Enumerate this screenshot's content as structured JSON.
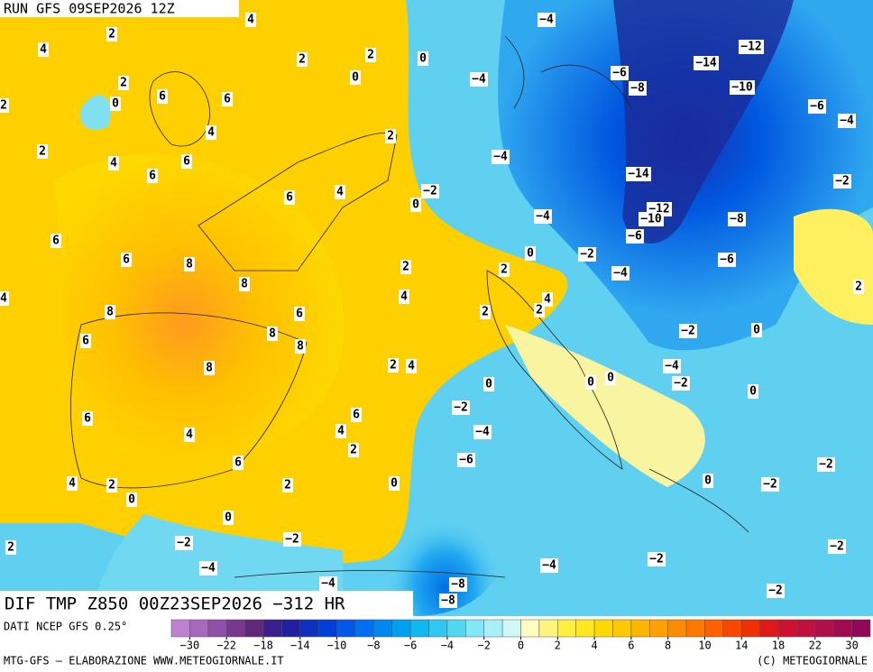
{
  "header": {
    "run": "RUN GFS 09SEP2026 12Z"
  },
  "footer": {
    "title": "DIF TMP Z850 00Z23SEP2026 −312 HR",
    "source": "DATI NCEP GFS 0.25°",
    "credit": "MTG-GFS — ELABORAZIONE WWW.METEOGIORNALE.IT",
    "copyright": "(C) METEOGIORNALE"
  },
  "colorbar": {
    "ticks": [
      "−30",
      "−22",
      "−18",
      "−14",
      "−10",
      "−8",
      "−6",
      "−4",
      "−2",
      "0",
      "2",
      "4",
      "6",
      "8",
      "10",
      "14",
      "18",
      "22",
      "30"
    ],
    "colors": [
      "#c080d0",
      "#a868c0",
      "#9050a8",
      "#783890",
      "#602878",
      "#3a1e8c",
      "#2020a0",
      "#1030c0",
      "#0040d8",
      "#0058e8",
      "#0070f0",
      "#0088f0",
      "#00a0f0",
      "#10b8f0",
      "#30c8f0",
      "#50d8f0",
      "#80e8f8",
      "#a8f0f8",
      "#d0f8f8",
      "#fffcc0",
      "#fff480",
      "#fff040",
      "#ffe820",
      "#ffd800",
      "#ffc800",
      "#ffb400",
      "#ffa000",
      "#ff8c00",
      "#ff7800",
      "#ff6000",
      "#f84800",
      "#f03000",
      "#e01818",
      "#d01030",
      "#c01040",
      "#b01048",
      "#a00a50",
      "#900858"
    ]
  },
  "map_labels": [
    "4",
    "2",
    "4",
    "2",
    "2",
    "0",
    "0",
    "2",
    "6",
    "6",
    "0",
    "2",
    "4",
    "2",
    "2",
    "4",
    "6",
    "6",
    "6",
    "4",
    "−2",
    "0",
    "6",
    "6",
    "8",
    "8",
    "2",
    "2",
    "4",
    "8",
    "6",
    "2",
    "4",
    "2",
    "6",
    "8",
    "8",
    "2",
    "4",
    "8",
    "0",
    "6",
    "4",
    "2",
    "4",
    "6",
    "6",
    "2",
    "0",
    "4",
    "2",
    "0",
    "0",
    "2",
    "4",
    "2",
    "0",
    "0",
    "0",
    "0",
    "0",
    "−4",
    "−12",
    "−14",
    "−6",
    "−8",
    "−4",
    "−10",
    "−6",
    "−4",
    "−4",
    "−14",
    "−2",
    "−4",
    "−12",
    "−10",
    "−8",
    "−6",
    "−2",
    "0",
    "−6",
    "−4",
    "−2",
    "−4",
    "−2",
    "−2",
    "−4",
    "−6",
    "−2",
    "−2",
    "−2",
    "−2",
    "−2",
    "−4",
    "−4",
    "−2",
    "−4",
    "−8",
    "−8",
    "−2"
  ]
}
